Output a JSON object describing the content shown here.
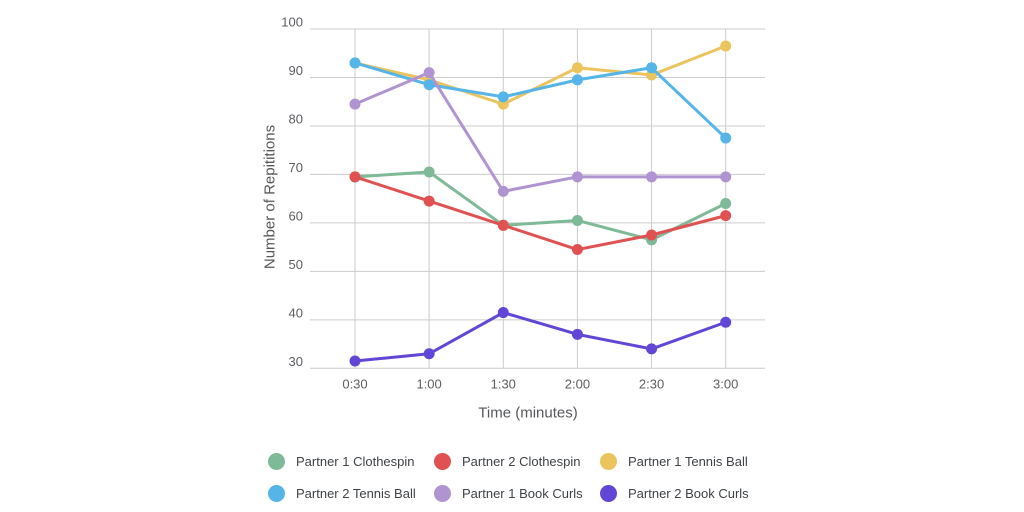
{
  "chart_data": {
    "type": "line",
    "xlabel": "Time (minutes)",
    "ylabel": "Number of Repititions",
    "x_categories": [
      "0:30",
      "1:00",
      "1:30",
      "2:00",
      "2:30",
      "3:00"
    ],
    "y_ticks": [
      100,
      90,
      80,
      70,
      60,
      50,
      40,
      30
    ],
    "ylim": [
      30,
      100
    ],
    "grid": true,
    "legend_position": "bottom",
    "grid_color": "#cccccc",
    "axis_tick_color": "#5b5d61",
    "axis_title_color": "#55575a",
    "legend_text_color": "#3f4246",
    "series": [
      {
        "name": "Partner 1 Clothespin",
        "color": "#7eba97",
        "values": [
          69.5,
          70.5,
          59.5,
          60.5,
          56.5,
          64
        ]
      },
      {
        "name": "Partner 2 Clothespin",
        "color": "#e05252",
        "values": [
          69.5,
          64.5,
          59.5,
          54.5,
          57.5,
          61.5
        ]
      },
      {
        "name": "Partner 1 Tennis Ball",
        "color": "#ecc45e",
        "values": [
          93,
          89.5,
          84.5,
          92,
          90.5,
          96.5
        ]
      },
      {
        "name": "Partner 2 Tennis Ball",
        "color": "#56b5e8",
        "values": [
          93,
          88.5,
          86,
          89.5,
          92,
          77.5
        ]
      },
      {
        "name": "Partner 1 Book Curls",
        "color": "#b094d2",
        "values": [
          84.5,
          91,
          66.5,
          69.5,
          69.5,
          69.5
        ]
      },
      {
        "name": "Partner 2 Book Curls",
        "color": "#6247d6",
        "values": [
          31.5,
          33,
          41.5,
          37,
          34,
          39.5
        ]
      }
    ]
  }
}
